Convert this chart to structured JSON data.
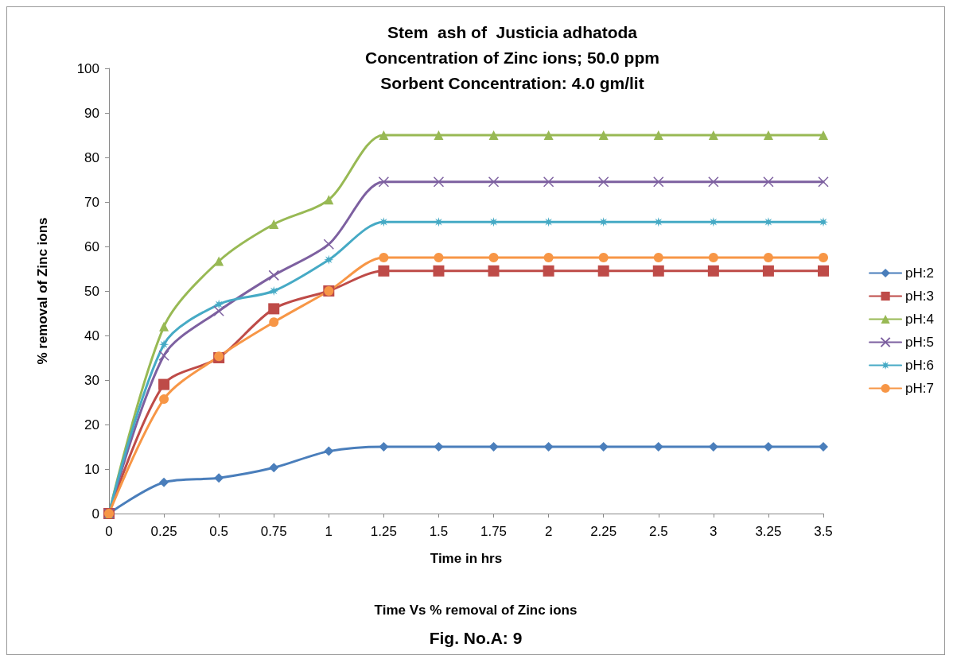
{
  "chart_data": {
    "type": "line",
    "title": "Stem  ash of  Justicia adhatoda\nConcentration of Zinc ions; 50.0 ppm\nSorbent Concentration: 4.0 gm/lit",
    "xlabel": "Time in hrs",
    "ylabel": "% removal of Zinc ions",
    "annotations": [
      "Time Vs % removal of Zinc ions",
      "Fig. No.A: 9"
    ],
    "categories": [
      "0",
      "0.25",
      "0.5",
      "0.75",
      "1",
      "1.25",
      "1.5",
      "1.75",
      "2",
      "2.25",
      "2.5",
      "3",
      "3.25",
      "3.5"
    ],
    "ylim": [
      0,
      100
    ],
    "yticks": [
      0,
      10,
      20,
      30,
      40,
      50,
      60,
      70,
      80,
      90,
      100
    ],
    "grid": false,
    "legend": "right",
    "series": [
      {
        "name": "pH:2",
        "color": "#4a7ebb",
        "marker": "diamond",
        "values": [
          0,
          7,
          8,
          10.3,
          14,
          15,
          15,
          15,
          15,
          15,
          15,
          15,
          15,
          15
        ]
      },
      {
        "name": "pH:3",
        "color": "#be4b48",
        "marker": "square",
        "values": [
          0,
          29,
          35,
          46,
          50,
          54.5,
          54.5,
          54.5,
          54.5,
          54.5,
          54.5,
          54.5,
          54.5,
          54.5
        ]
      },
      {
        "name": "pH:4",
        "color": "#98b954",
        "marker": "triangle",
        "values": [
          0,
          42,
          56.7,
          65,
          70.5,
          85,
          85,
          85,
          85,
          85,
          85,
          85,
          85,
          85
        ]
      },
      {
        "name": "pH:5",
        "color": "#7d60a0",
        "marker": "cross",
        "values": [
          0,
          35.5,
          45.5,
          53.5,
          60.5,
          74.5,
          74.5,
          74.5,
          74.5,
          74.5,
          74.5,
          74.5,
          74.5,
          74.5
        ]
      },
      {
        "name": "pH:6",
        "color": "#46aac5",
        "marker": "star",
        "values": [
          0,
          38,
          47,
          50,
          57,
          65.5,
          65.5,
          65.5,
          65.5,
          65.5,
          65.5,
          65.5,
          65.5,
          65.5
        ]
      },
      {
        "name": "pH:7",
        "color": "#f79646",
        "marker": "circle",
        "values": [
          0,
          25.7,
          35.3,
          43,
          50,
          57.5,
          57.5,
          57.5,
          57.5,
          57.5,
          57.5,
          57.5,
          57.5,
          57.5
        ]
      }
    ]
  }
}
